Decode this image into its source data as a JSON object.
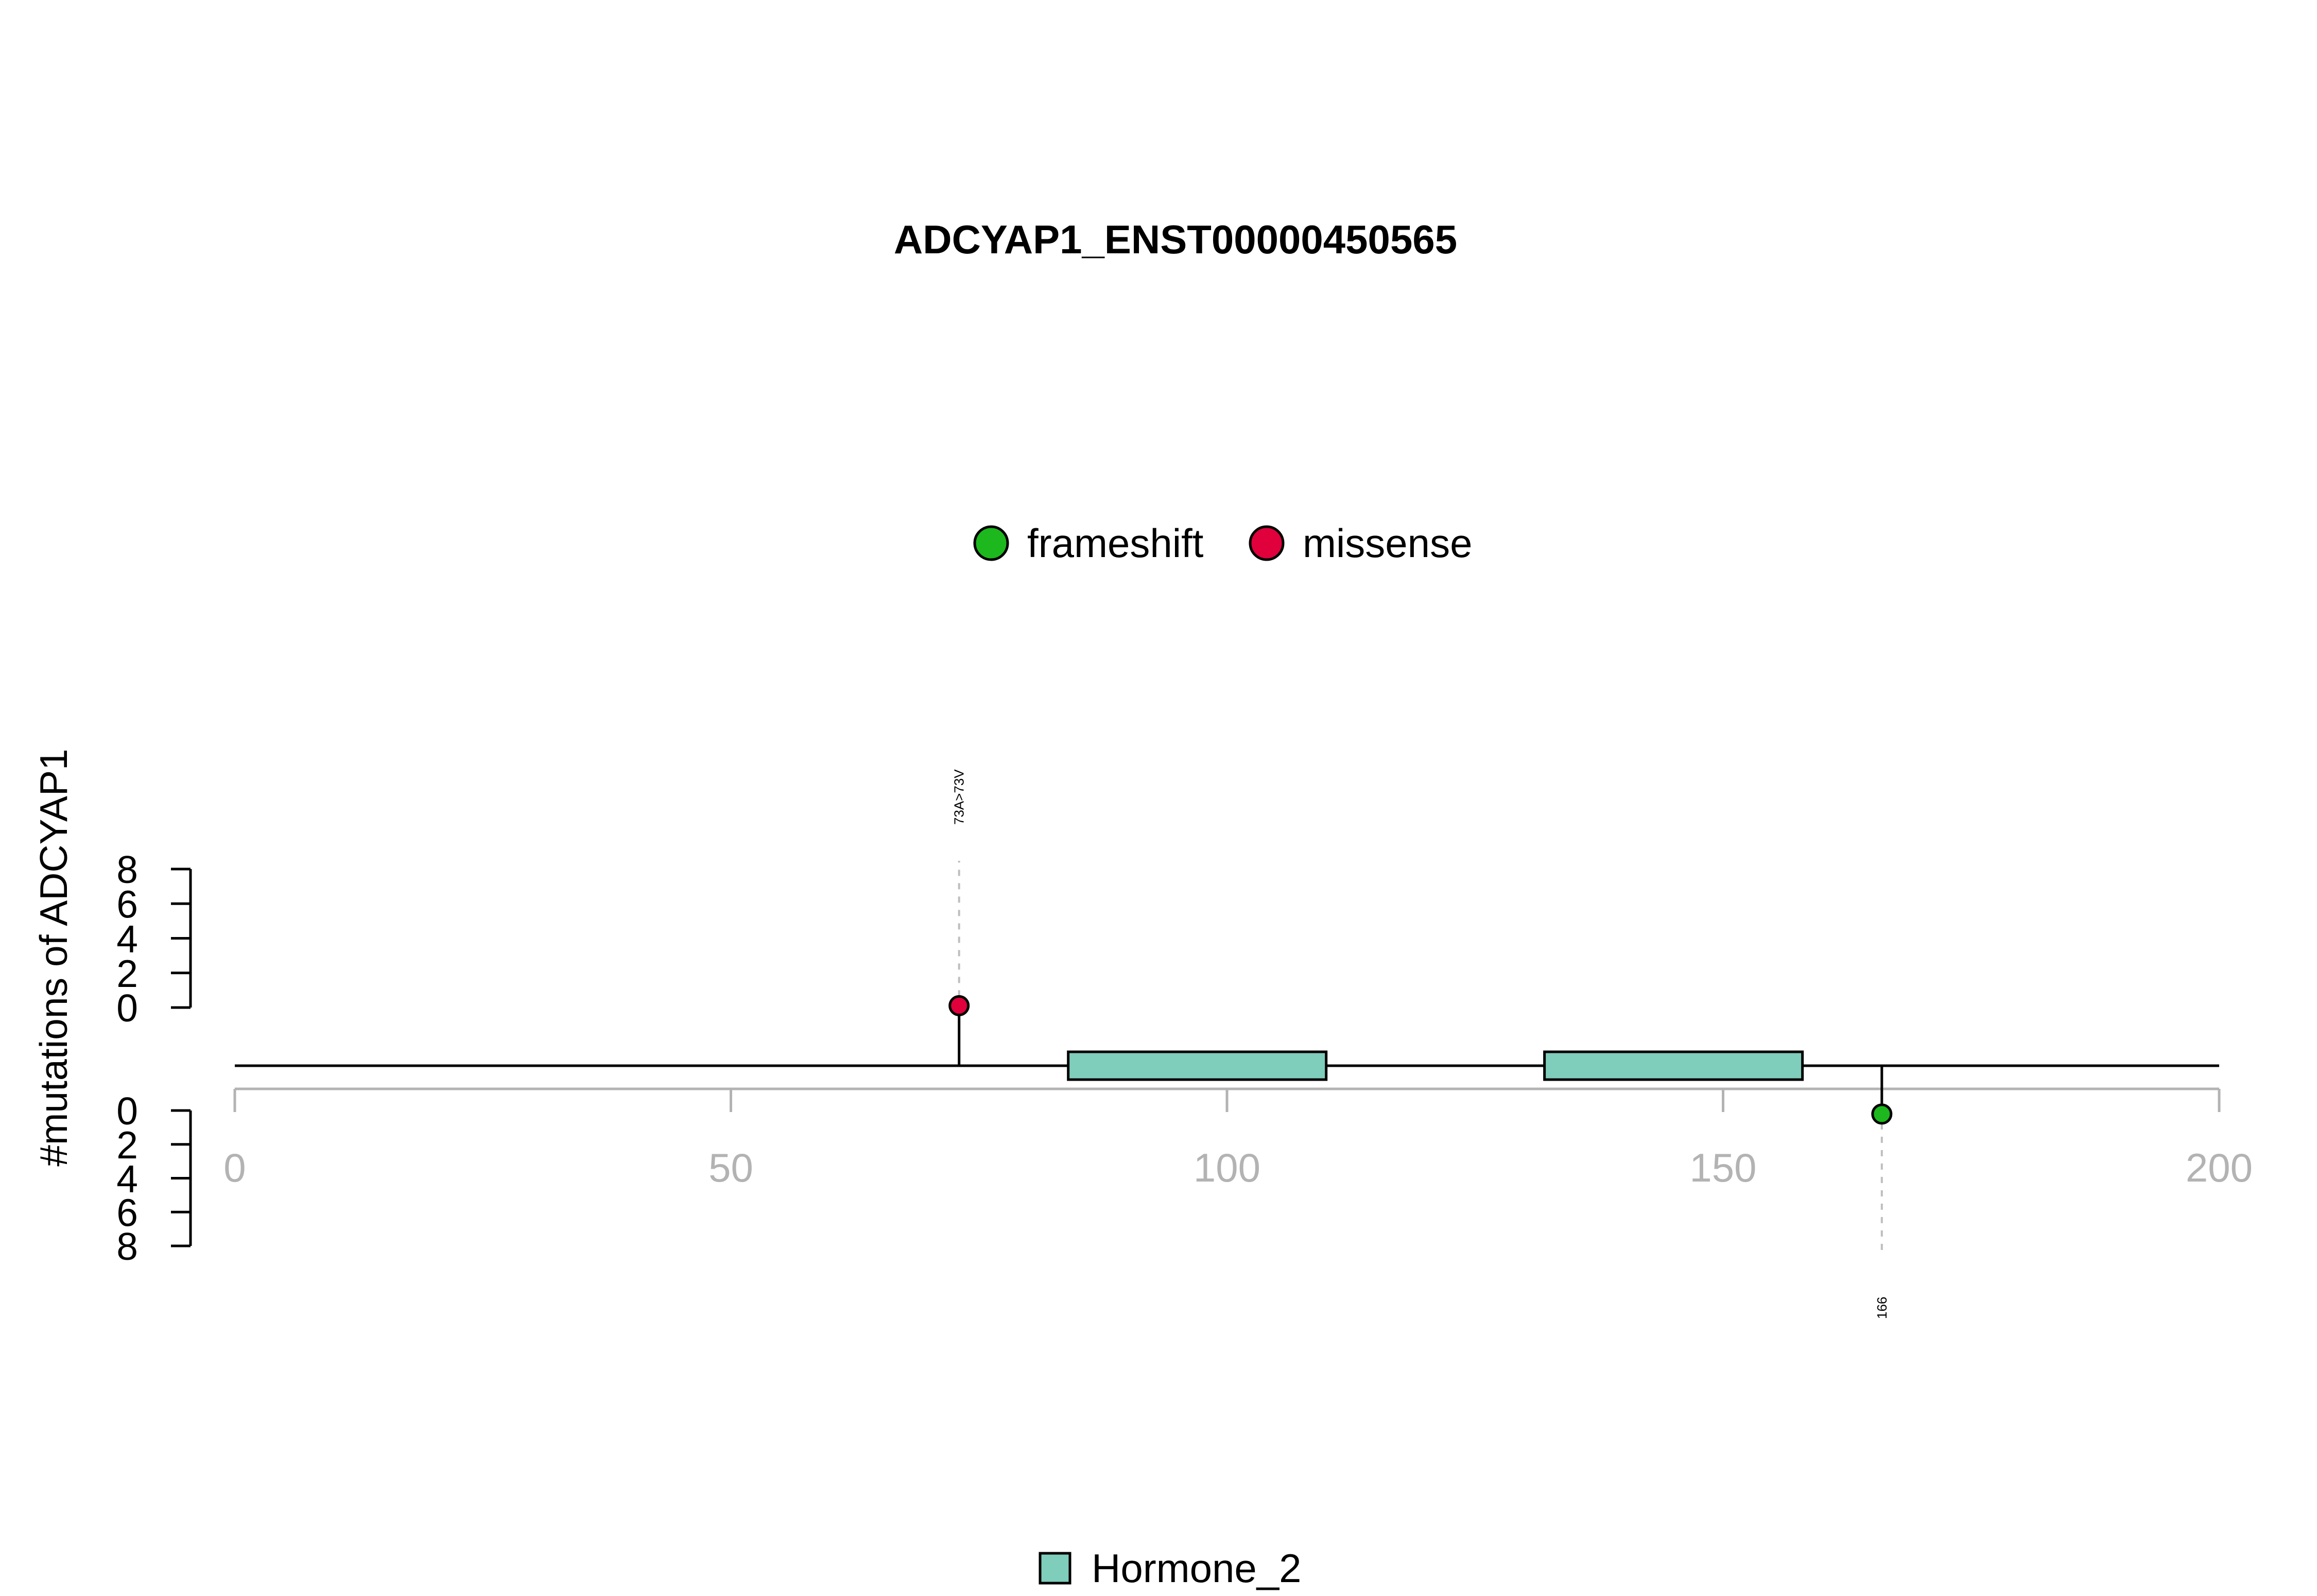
{
  "chart_data": {
    "type": "lollipop",
    "title": "ADCYAP1_ENST00000450565",
    "ylabel": "#mutations of ADCYAP1",
    "xlabel": "",
    "xlim": [
      0,
      200
    ],
    "x_ticks": [
      "0",
      "50",
      "100",
      "150",
      "200"
    ],
    "y_ticks_top": [
      "8",
      "6",
      "4",
      "2",
      "0"
    ],
    "y_ticks_bottom": [
      "0",
      "2",
      "4",
      "6",
      "8"
    ],
    "protein_length": 200,
    "legend_mutations": [
      {
        "label": "frameshift",
        "color": "#1DB81D"
      },
      {
        "label": "missense",
        "color": "#E0003C"
      }
    ],
    "legend_domains": [
      {
        "label": "Hormone_2",
        "color": "#7FCDBB"
      }
    ],
    "domains": [
      {
        "name": "Hormone_2",
        "start": 84,
        "end": 110,
        "color": "#7FCDBB"
      },
      {
        "name": "Hormone_2",
        "start": 132,
        "end": 158,
        "color": "#7FCDBB"
      }
    ],
    "mutations": [
      {
        "position": 73,
        "count": 1,
        "type": "missense",
        "side": "top",
        "label": "73A>73V",
        "color": "#E0003C"
      },
      {
        "position": 166,
        "count": 1,
        "type": "frameshift",
        "side": "bottom",
        "label": "166",
        "color": "#1DB81D"
      }
    ],
    "colors": {
      "axis_gray": "#B3B3B3",
      "guide_gray": "#BEBEBE",
      "black": "#000000"
    }
  }
}
